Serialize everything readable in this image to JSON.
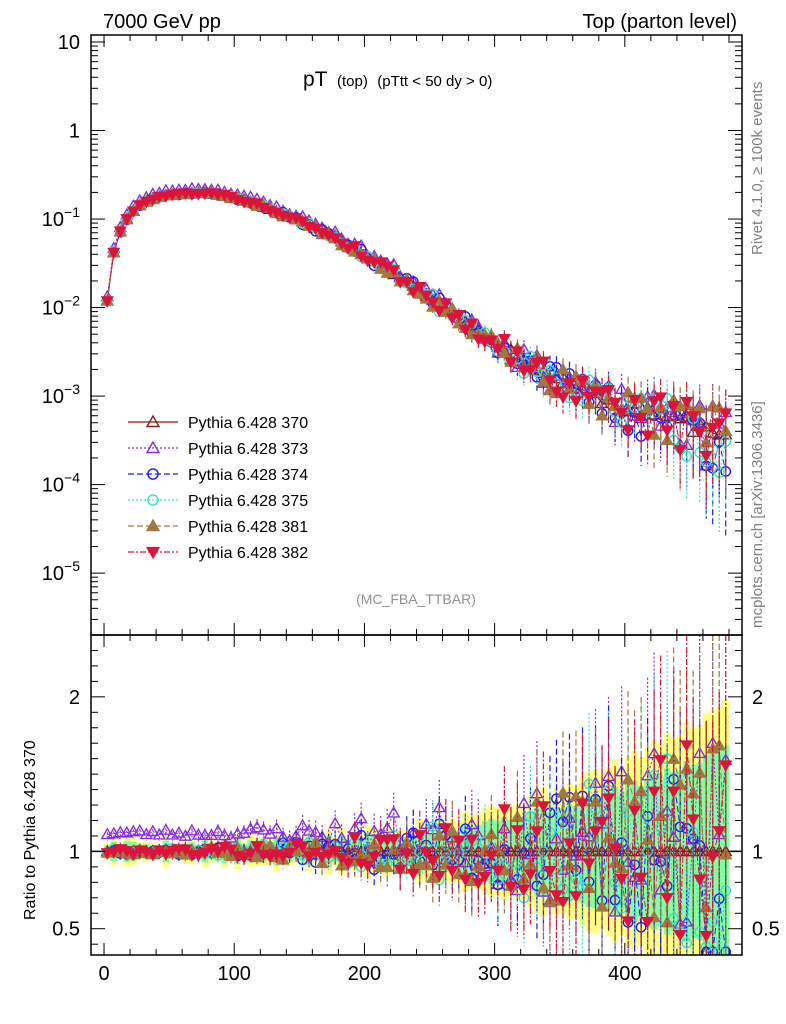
{
  "header": {
    "left": "7000 GeV pp",
    "right": "Top (parton level)"
  },
  "side_text": {
    "rivet": "Rivet 4.1.0, ≥ 100k events",
    "mcplots": "mcplots.cern.ch [arXiv:1306.3436]"
  },
  "chart_data": {
    "type": "scatter",
    "title": "pT",
    "title_sub": "(top)",
    "title_cut": "(pTtt < 50 dy > 0)",
    "analysis": "(MC_FBA_TTBAR)",
    "xlabel": "",
    "ylabel": "",
    "ratio_ylabel": "Ratio to Pythia 6.428 370",
    "xlim": [
      -10,
      490
    ],
    "ylim": [
      2e-06,
      12
    ],
    "yscale": "log",
    "ratio_ylim": [
      0.33,
      2.4
    ],
    "x_ticks": [
      "0",
      "100",
      "200",
      "300",
      "400"
    ],
    "y_ticks": [
      {
        "base": "10",
        "exp": "-5",
        "v": 1e-05
      },
      {
        "base": "10",
        "exp": "-4",
        "v": 0.0001
      },
      {
        "base": "10",
        "exp": "-3",
        "v": 0.001
      },
      {
        "base": "10",
        "exp": "-2",
        "v": 0.01
      },
      {
        "base": "10",
        "exp": "-1",
        "v": 0.1
      },
      {
        "base": "1",
        "exp": "",
        "v": 1
      },
      {
        "base": "10",
        "exp": "",
        "v": 10
      }
    ],
    "ratio_ticks": [
      {
        "label": "0.5",
        "v": 0.5
      },
      {
        "label": "1",
        "v": 1
      },
      {
        "label": "2",
        "v": 2
      }
    ],
    "spectrum": {
      "x": [
        2.5,
        7.5,
        12.5,
        17.5,
        22.5,
        27.5,
        32.5,
        37.5,
        42.5,
        47.5,
        55,
        65,
        75,
        85,
        95,
        110,
        130,
        150,
        170,
        190,
        210,
        230,
        250,
        270,
        290,
        310,
        330,
        350,
        370,
        390,
        410,
        430,
        450,
        470,
        480
      ],
      "y": [
        0.012,
        0.042,
        0.072,
        0.1,
        0.125,
        0.143,
        0.158,
        0.17,
        0.178,
        0.185,
        0.19,
        0.195,
        0.198,
        0.192,
        0.18,
        0.16,
        0.125,
        0.095,
        0.07,
        0.048,
        0.032,
        0.021,
        0.013,
        0.0082,
        0.0052,
        0.0033,
        0.0022,
        0.0015,
        0.0011,
        0.00085,
        0.0007,
        0.0006,
        0.0005,
        0.00045,
        0.0004
      ]
    },
    "series": [
      {
        "name": "Pythia 6.428 370",
        "color": "#8b1a1a",
        "marker": "triangle-open",
        "dash": "",
        "seed": 11,
        "spread": 0.0
      },
      {
        "name": "Pythia 6.428 373",
        "color": "#8a2be2",
        "marker": "triangle-open",
        "dash": "2,2",
        "seed": 23,
        "spread": 0.12
      },
      {
        "name": "Pythia 6.428 374",
        "color": "#1a1aff",
        "marker": "circle-open",
        "dash": "6,3",
        "seed": 37,
        "spread": 0.1
      },
      {
        "name": "Pythia 6.428 375",
        "color": "#2ee6c8",
        "marker": "circle-open",
        "dash": "2,2",
        "seed": 51,
        "spread": 0.1
      },
      {
        "name": "Pythia 6.428 381",
        "color": "#a07840",
        "marker": "triangle-filled",
        "dash": "6,3",
        "seed": 67,
        "spread": 0.1
      },
      {
        "name": "Pythia 6.428 382",
        "color": "#dc143c",
        "marker": "triangle-down-filled",
        "dash": "6,2,2,2",
        "seed": 79,
        "spread": 0.1
      }
    ],
    "band_colors": {
      "outer": "#ffff80",
      "inner": "#7fff9f"
    }
  }
}
